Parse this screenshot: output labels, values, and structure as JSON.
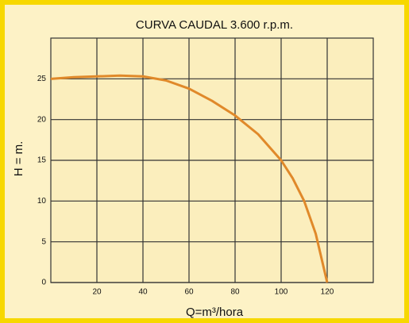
{
  "chart_data": {
    "type": "line",
    "title": "CURVA CAUDAL 3.600 r.p.m.",
    "x_label": "Q=m³/hora",
    "y_label": "H = m.",
    "series": [
      {
        "name": "3.600 r.p.m.",
        "color": "#e0892a",
        "x": [
          0,
          10,
          20,
          30,
          40,
          50,
          60,
          70,
          80,
          90,
          100,
          105,
          110,
          115,
          120
        ],
        "values": [
          25,
          25.2,
          25.3,
          25.4,
          25.3,
          24.8,
          23.8,
          22.3,
          20.5,
          18.2,
          15,
          12.8,
          10,
          6,
          0
        ]
      }
    ],
    "xlim": [
      0,
      140
    ],
    "ylim": [
      0,
      30
    ],
    "xticks": [
      20,
      40,
      60,
      80,
      100,
      120
    ],
    "yticks": [
      0,
      5,
      10,
      15,
      20,
      25
    ],
    "grid": true
  }
}
